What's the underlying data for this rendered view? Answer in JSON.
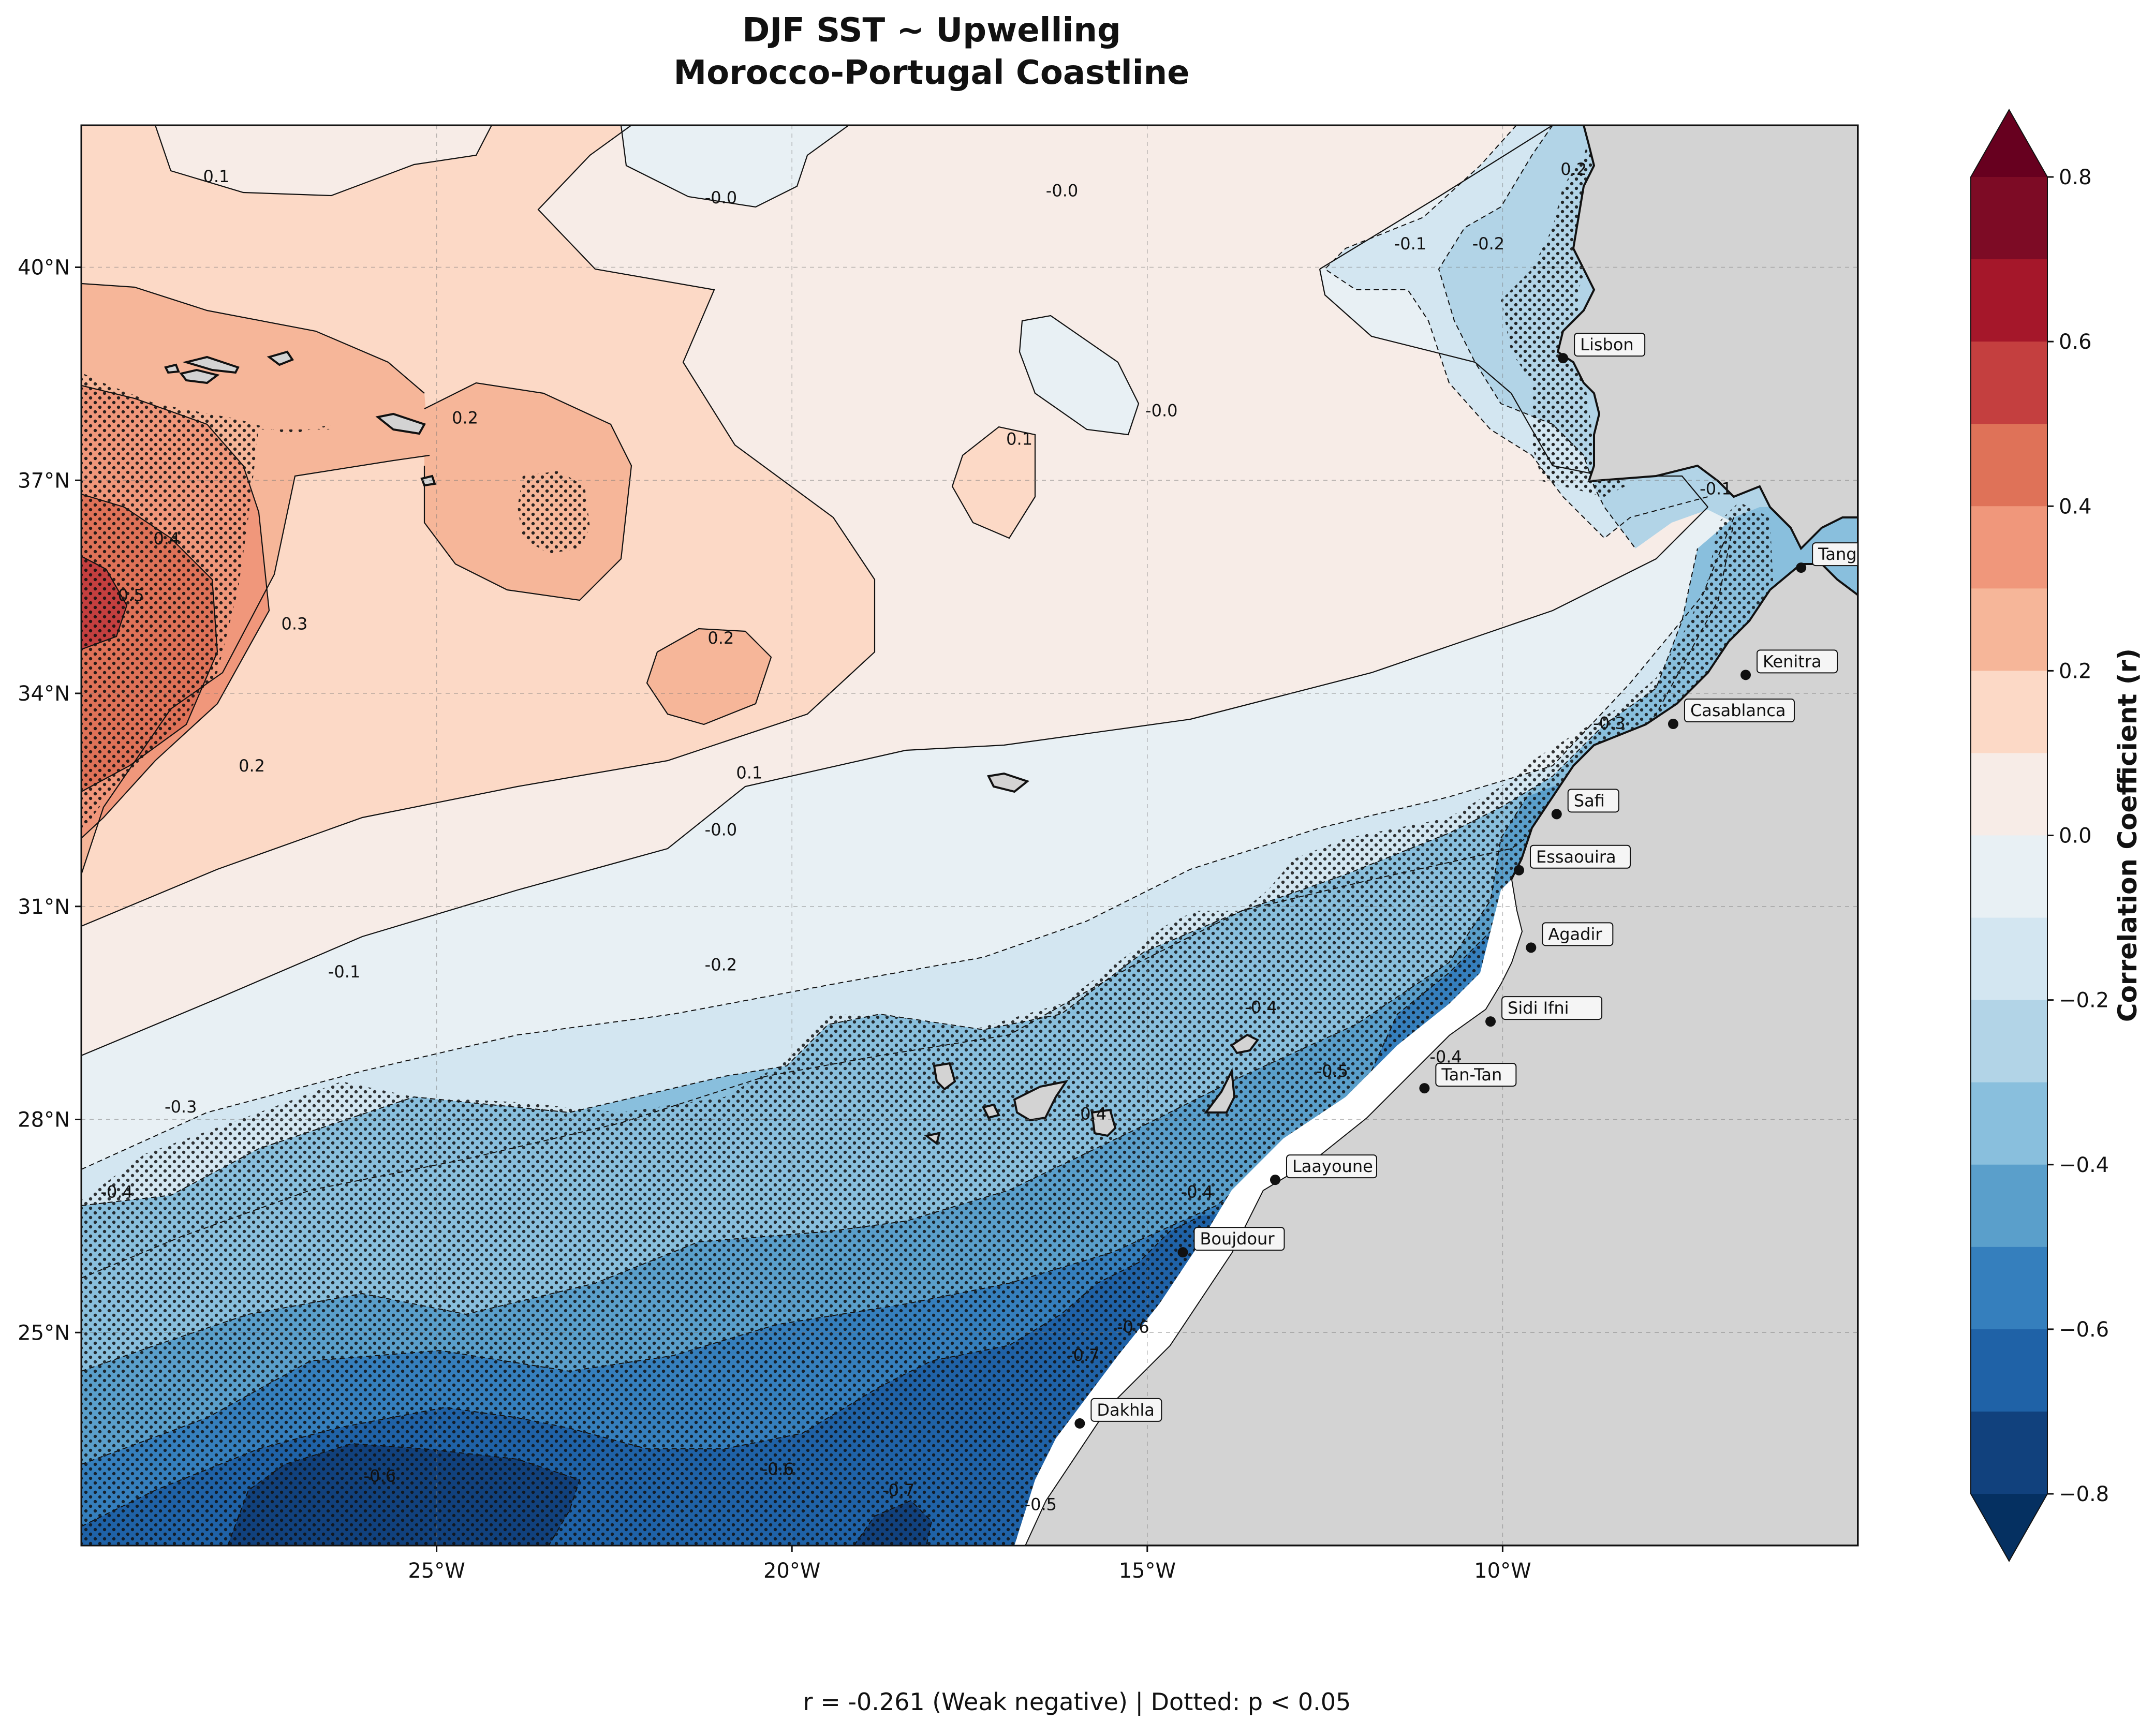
{
  "title": {
    "line1": "DJF SST ~ Upwelling",
    "line2": "Morocco-Portugal Coastline"
  },
  "axes": {
    "lat_ticks": [
      {
        "lat": 40,
        "label": "40°N"
      },
      {
        "lat": 37,
        "label": "37°N"
      },
      {
        "lat": 34,
        "label": "34°N"
      },
      {
        "lat": 31,
        "label": "31°N"
      },
      {
        "lat": 28,
        "label": "28°N"
      },
      {
        "lat": 25,
        "label": "25°N"
      }
    ],
    "lon_ticks": [
      {
        "lon": -25,
        "label": "25°W"
      },
      {
        "lon": -20,
        "label": "20°W"
      },
      {
        "lon": -15,
        "label": "15°W"
      },
      {
        "lon": -10,
        "label": "10°W"
      }
    ],
    "lon_range": [
      -30,
      -5
    ],
    "lat_range": [
      22,
      42
    ]
  },
  "colorbar": {
    "label": "Correlation Coefficient (r)",
    "ticks": [
      "0.8",
      "0.6",
      "0.4",
      "0.2",
      "0.0",
      "−0.2",
      "−0.4",
      "−0.6",
      "−0.8"
    ],
    "levels": [
      0.8,
      0.7,
      0.6,
      0.5,
      0.4,
      0.3,
      0.2,
      0.1,
      0.0,
      -0.1,
      -0.2,
      -0.3,
      -0.4,
      -0.5,
      -0.6,
      -0.7,
      -0.8
    ],
    "colors": {
      "extend_high": "#67001f",
      "extend_low": "#053061",
      "bands": [
        "#7d0b25",
        "#a5172a",
        "#c43f3f",
        "#df7258",
        "#f0977b",
        "#f6b699",
        "#fcd9c6",
        "#f7ece7",
        "#e8f0f4",
        "#d3e6f1",
        "#b2d4e7",
        "#89bfdd",
        "#5a9fcb",
        "#357fbd",
        "#1f62a7",
        "#11417d"
      ]
    }
  },
  "cities": [
    {
      "name": "Lisbon",
      "lon": -9.15,
      "lat": 38.72
    },
    {
      "name": "Tangier",
      "lon": -5.8,
      "lat": 35.77
    },
    {
      "name": "Kenitra",
      "lon": -6.58,
      "lat": 34.26
    },
    {
      "name": "Casablanca",
      "lon": -7.6,
      "lat": 33.57
    },
    {
      "name": "Safi",
      "lon": -9.24,
      "lat": 32.3
    },
    {
      "name": "Essaouira",
      "lon": -9.77,
      "lat": 31.51
    },
    {
      "name": "Agadir",
      "lon": -9.6,
      "lat": 30.42
    },
    {
      "name": "Sidi Ifni",
      "lon": -10.17,
      "lat": 29.38
    },
    {
      "name": "Tan-Tan",
      "lon": -11.1,
      "lat": 28.44
    },
    {
      "name": "Laayoune",
      "lon": -13.2,
      "lat": 27.15
    },
    {
      "name": "Boujdour",
      "lon": -14.5,
      "lat": 26.13
    },
    {
      "name": "Dakhla",
      "lon": -15.95,
      "lat": 23.72
    }
  ],
  "contour_labels": [
    {
      "text": "0.1",
      "lon": -28.1,
      "lat": 41.2
    },
    {
      "text": "-0.0",
      "lon": -21.0,
      "lat": 40.9
    },
    {
      "text": "-0.0",
      "lon": -16.2,
      "lat": 41.0
    },
    {
      "text": "-0.1",
      "lon": -11.3,
      "lat": 40.25
    },
    {
      "text": "-0.2",
      "lon": -10.2,
      "lat": 40.25
    },
    {
      "text": "0.2",
      "lon": -9.0,
      "lat": 41.3
    },
    {
      "text": "0.2",
      "lon": -24.6,
      "lat": 37.8
    },
    {
      "text": "-0.0",
      "lon": -14.8,
      "lat": 37.9
    },
    {
      "text": "0.1",
      "lon": -16.8,
      "lat": 37.5
    },
    {
      "text": "0.4",
      "lon": -28.8,
      "lat": 36.1
    },
    {
      "text": "0.3",
      "lon": -27.0,
      "lat": 34.9
    },
    {
      "text": "0.5",
      "lon": -29.3,
      "lat": 35.3
    },
    {
      "text": "0.2",
      "lon": -21.0,
      "lat": 34.7
    },
    {
      "text": "-0.1",
      "lon": -7.0,
      "lat": 36.8
    },
    {
      "text": "0.2",
      "lon": -27.6,
      "lat": 32.9
    },
    {
      "text": "0.1",
      "lon": -20.6,
      "lat": 32.8
    },
    {
      "text": "-0.0",
      "lon": -21.0,
      "lat": 32.0
    },
    {
      "text": "-0.3",
      "lon": -8.5,
      "lat": 33.5
    },
    {
      "text": "-0.1",
      "lon": -26.3,
      "lat": 30.0
    },
    {
      "text": "-0.2",
      "lon": -21.0,
      "lat": 30.1
    },
    {
      "text": "-0.4",
      "lon": -13.4,
      "lat": 29.5
    },
    {
      "text": "-0.4",
      "lon": -10.8,
      "lat": 28.8
    },
    {
      "text": "-0.5",
      "lon": -12.4,
      "lat": 28.6
    },
    {
      "text": "-0.3",
      "lon": -28.6,
      "lat": 28.1
    },
    {
      "text": "-0.4",
      "lon": -15.8,
      "lat": 28.0
    },
    {
      "text": "-0.4",
      "lon": -29.5,
      "lat": 26.9
    },
    {
      "text": "-0.4",
      "lon": -14.3,
      "lat": 26.9
    },
    {
      "text": "-0.6",
      "lon": -15.2,
      "lat": 25.0
    },
    {
      "text": "-0.6",
      "lon": -25.8,
      "lat": 22.9
    },
    {
      "text": "-0.6",
      "lon": -20.2,
      "lat": 23.0
    },
    {
      "text": "-0.7",
      "lon": -18.5,
      "lat": 22.7
    },
    {
      "text": "-0.5",
      "lon": -16.5,
      "lat": 22.5
    },
    {
      "text": "-0.7",
      "lon": -15.9,
      "lat": 24.6
    }
  ],
  "footer": "r = -0.261 (Weak negative) | Dotted: p < 0.05"
}
